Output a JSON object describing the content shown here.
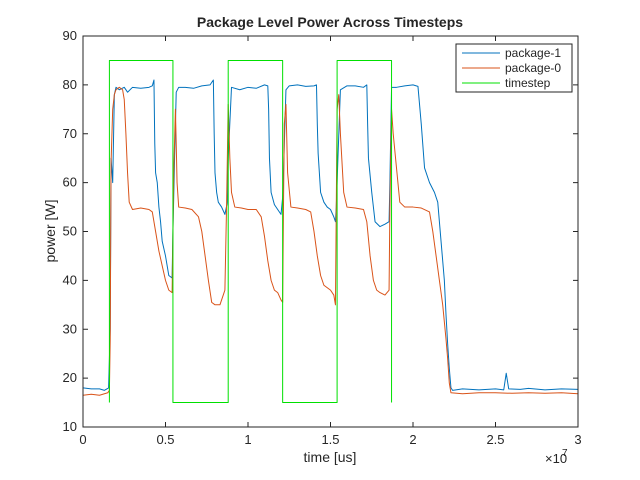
{
  "chart_data": {
    "type": "line",
    "title": "Package Level Power Across Timesteps",
    "xlabel": "time [us]",
    "ylabel": "power [W]",
    "x_multiplier_label": "×10",
    "x_multiplier_exponent": "7",
    "x_scale": 10000000,
    "xlim": [
      0,
      3
    ],
    "ylim": [
      10,
      90
    ],
    "xticks": [
      0,
      0.5,
      1,
      1.5,
      2,
      2.5,
      3
    ],
    "xtick_labels": [
      "0",
      "0.5",
      "1",
      "1.5",
      "2",
      "2.5",
      "3"
    ],
    "yticks": [
      10,
      20,
      30,
      40,
      50,
      60,
      70,
      80,
      90
    ],
    "ytick_labels": [
      "10",
      "20",
      "30",
      "40",
      "50",
      "60",
      "70",
      "80",
      "90"
    ],
    "grid": false,
    "legend_position": "top-right",
    "series": [
      {
        "name": "package-1",
        "color": "#0072bd",
        "points": [
          [
            0,
            18.0
          ],
          [
            0.05,
            17.8
          ],
          [
            0.1,
            17.8
          ],
          [
            0.13,
            17.5
          ],
          [
            0.155,
            18.0
          ],
          [
            0.165,
            30.0
          ],
          [
            0.17,
            65.0
          ],
          [
            0.18,
            60.0
          ],
          [
            0.19,
            78.0
          ],
          [
            0.2,
            79.5
          ],
          [
            0.22,
            79.0
          ],
          [
            0.25,
            79.5
          ],
          [
            0.27,
            78.5
          ],
          [
            0.3,
            79.5
          ],
          [
            0.35,
            79.3
          ],
          [
            0.4,
            79.5
          ],
          [
            0.42,
            79.8
          ],
          [
            0.43,
            81.0
          ],
          [
            0.435,
            68.0
          ],
          [
            0.44,
            62.0
          ],
          [
            0.45,
            60.0
          ],
          [
            0.46,
            55.0
          ],
          [
            0.47,
            52.0
          ],
          [
            0.48,
            48.0
          ],
          [
            0.5,
            45.0
          ],
          [
            0.51,
            43.0
          ],
          [
            0.52,
            41.0
          ],
          [
            0.54,
            40.5
          ],
          [
            0.545,
            50.0
          ],
          [
            0.555,
            65.0
          ],
          [
            0.565,
            78.5
          ],
          [
            0.58,
            79.5
          ],
          [
            0.62,
            79.5
          ],
          [
            0.67,
            79.3
          ],
          [
            0.72,
            79.8
          ],
          [
            0.77,
            80.0
          ],
          [
            0.79,
            81.0
          ],
          [
            0.795,
            70.0
          ],
          [
            0.8,
            62.0
          ],
          [
            0.81,
            58.0
          ],
          [
            0.82,
            56.0
          ],
          [
            0.84,
            55.0
          ],
          [
            0.86,
            53.5
          ],
          [
            0.875,
            56.0
          ],
          [
            0.88,
            65.0
          ],
          [
            0.9,
            79.5
          ],
          [
            0.95,
            79.0
          ],
          [
            1.0,
            79.5
          ],
          [
            1.05,
            79.3
          ],
          [
            1.1,
            80.0
          ],
          [
            1.12,
            79.8
          ],
          [
            1.125,
            75.0
          ],
          [
            1.13,
            65.0
          ],
          [
            1.14,
            58.0
          ],
          [
            1.16,
            55.5
          ],
          [
            1.18,
            54.5
          ],
          [
            1.2,
            53.5
          ],
          [
            1.21,
            57.0
          ],
          [
            1.215,
            62.0
          ],
          [
            1.23,
            79.0
          ],
          [
            1.25,
            79.8
          ],
          [
            1.3,
            80.0
          ],
          [
            1.35,
            79.7
          ],
          [
            1.4,
            79.8
          ],
          [
            1.415,
            80.0
          ],
          [
            1.42,
            72.0
          ],
          [
            1.425,
            66.0
          ],
          [
            1.44,
            58.0
          ],
          [
            1.46,
            56.0
          ],
          [
            1.48,
            55.0
          ],
          [
            1.5,
            54.5
          ],
          [
            1.52,
            53.0
          ],
          [
            1.53,
            52.0
          ],
          [
            1.535,
            55.0
          ],
          [
            1.545,
            65.0
          ],
          [
            1.56,
            79.0
          ],
          [
            1.6,
            79.8
          ],
          [
            1.65,
            79.8
          ],
          [
            1.7,
            79.5
          ],
          [
            1.72,
            80.0
          ],
          [
            1.725,
            72.0
          ],
          [
            1.73,
            65.0
          ],
          [
            1.75,
            58.0
          ],
          [
            1.77,
            52.0
          ],
          [
            1.8,
            51.0
          ],
          [
            1.83,
            51.5
          ],
          [
            1.855,
            52.0
          ],
          [
            1.86,
            60.0
          ],
          [
            1.87,
            79.5
          ],
          [
            1.9,
            79.5
          ],
          [
            1.95,
            79.8
          ],
          [
            2.0,
            80.0
          ],
          [
            2.03,
            79.7
          ],
          [
            2.05,
            72.0
          ],
          [
            2.07,
            63.0
          ],
          [
            2.1,
            60.0
          ],
          [
            2.13,
            58.0
          ],
          [
            2.15,
            56.0
          ],
          [
            2.17,
            48.0
          ],
          [
            2.19,
            40.0
          ],
          [
            2.2,
            33.0
          ],
          [
            2.21,
            27.0
          ],
          [
            2.22,
            22.0
          ],
          [
            2.23,
            18.0
          ],
          [
            2.24,
            17.5
          ],
          [
            2.3,
            17.8
          ],
          [
            2.4,
            17.6
          ],
          [
            2.5,
            17.8
          ],
          [
            2.55,
            17.6
          ],
          [
            2.565,
            21.0
          ],
          [
            2.58,
            17.8
          ],
          [
            2.65,
            17.7
          ],
          [
            2.7,
            17.9
          ],
          [
            2.8,
            17.6
          ],
          [
            2.9,
            17.8
          ],
          [
            3.0,
            17.7
          ]
        ]
      },
      {
        "name": "package-0",
        "color": "#d95319",
        "points": [
          [
            0,
            16.5
          ],
          [
            0.05,
            16.7
          ],
          [
            0.1,
            16.5
          ],
          [
            0.15,
            17.0
          ],
          [
            0.16,
            17.5
          ],
          [
            0.165,
            28.0
          ],
          [
            0.17,
            64.0
          ],
          [
            0.18,
            75.0
          ],
          [
            0.19,
            78.0
          ],
          [
            0.2,
            79.0
          ],
          [
            0.22,
            79.5
          ],
          [
            0.24,
            79.0
          ],
          [
            0.25,
            77.0
          ],
          [
            0.26,
            70.0
          ],
          [
            0.27,
            62.0
          ],
          [
            0.28,
            56.0
          ],
          [
            0.3,
            54.5
          ],
          [
            0.35,
            54.8
          ],
          [
            0.4,
            54.5
          ],
          [
            0.42,
            54.0
          ],
          [
            0.44,
            50.0
          ],
          [
            0.46,
            46.0
          ],
          [
            0.48,
            43.0
          ],
          [
            0.5,
            40.0
          ],
          [
            0.52,
            38.0
          ],
          [
            0.54,
            37.5
          ],
          [
            0.55,
            62.0
          ],
          [
            0.56,
            75.0
          ],
          [
            0.565,
            68.0
          ],
          [
            0.57,
            60.0
          ],
          [
            0.58,
            55.0
          ],
          [
            0.62,
            54.8
          ],
          [
            0.66,
            54.5
          ],
          [
            0.7,
            53.0
          ],
          [
            0.72,
            50.0
          ],
          [
            0.74,
            45.0
          ],
          [
            0.76,
            40.0
          ],
          [
            0.78,
            35.5
          ],
          [
            0.8,
            35.0
          ],
          [
            0.83,
            35.0
          ],
          [
            0.85,
            37.0
          ],
          [
            0.86,
            38.0
          ],
          [
            0.87,
            55.0
          ],
          [
            0.88,
            76.0
          ],
          [
            0.89,
            65.0
          ],
          [
            0.9,
            58.0
          ],
          [
            0.92,
            55.0
          ],
          [
            0.96,
            54.8
          ],
          [
            1.0,
            54.5
          ],
          [
            1.05,
            54.5
          ],
          [
            1.08,
            53.0
          ],
          [
            1.1,
            49.0
          ],
          [
            1.12,
            44.0
          ],
          [
            1.14,
            40.0
          ],
          [
            1.16,
            38.0
          ],
          [
            1.18,
            37.5
          ],
          [
            1.2,
            36.0
          ],
          [
            1.21,
            35.5
          ],
          [
            1.215,
            55.0
          ],
          [
            1.22,
            72.0
          ],
          [
            1.23,
            76.0
          ],
          [
            1.24,
            62.0
          ],
          [
            1.26,
            55.0
          ],
          [
            1.3,
            54.8
          ],
          [
            1.35,
            54.5
          ],
          [
            1.38,
            54.0
          ],
          [
            1.4,
            50.0
          ],
          [
            1.42,
            45.0
          ],
          [
            1.44,
            41.0
          ],
          [
            1.46,
            39.0
          ],
          [
            1.5,
            38.0
          ],
          [
            1.52,
            37.0
          ],
          [
            1.53,
            35.0
          ],
          [
            1.535,
            55.0
          ],
          [
            1.54,
            75.0
          ],
          [
            1.55,
            78.0
          ],
          [
            1.56,
            70.0
          ],
          [
            1.58,
            58.0
          ],
          [
            1.6,
            55.0
          ],
          [
            1.65,
            54.8
          ],
          [
            1.7,
            54.5
          ],
          [
            1.72,
            52.0
          ],
          [
            1.74,
            45.0
          ],
          [
            1.76,
            40.0
          ],
          [
            1.78,
            38.0
          ],
          [
            1.8,
            37.5
          ],
          [
            1.83,
            37.0
          ],
          [
            1.855,
            38.0
          ],
          [
            1.86,
            55.0
          ],
          [
            1.87,
            75.0
          ],
          [
            1.88,
            70.0
          ],
          [
            1.9,
            63.0
          ],
          [
            1.92,
            56.0
          ],
          [
            1.95,
            55.0
          ],
          [
            2.0,
            55.0
          ],
          [
            2.05,
            54.8
          ],
          [
            2.1,
            54.0
          ],
          [
            2.12,
            50.0
          ],
          [
            2.14,
            45.0
          ],
          [
            2.16,
            40.0
          ],
          [
            2.18,
            35.0
          ],
          [
            2.2,
            28.0
          ],
          [
            2.21,
            24.0
          ],
          [
            2.22,
            19.0
          ],
          [
            2.23,
            17.0
          ],
          [
            2.3,
            16.8
          ],
          [
            2.4,
            17.0
          ],
          [
            2.5,
            17.0
          ],
          [
            2.6,
            16.9
          ],
          [
            2.7,
            17.0
          ],
          [
            2.8,
            16.9
          ],
          [
            2.9,
            17.0
          ],
          [
            3.0,
            16.8
          ]
        ]
      },
      {
        "name": "timestep",
        "color": "#00e000",
        "points": [
          [
            0.16,
            15
          ],
          [
            0.16,
            85
          ],
          [
            0.545,
            85
          ],
          [
            0.545,
            15
          ],
          [
            0.88,
            15
          ],
          [
            0.88,
            85
          ],
          [
            1.21,
            85
          ],
          [
            1.21,
            15
          ],
          [
            1.54,
            15
          ],
          [
            1.54,
            85
          ],
          [
            1.87,
            85
          ],
          [
            1.87,
            15
          ]
        ]
      }
    ]
  }
}
